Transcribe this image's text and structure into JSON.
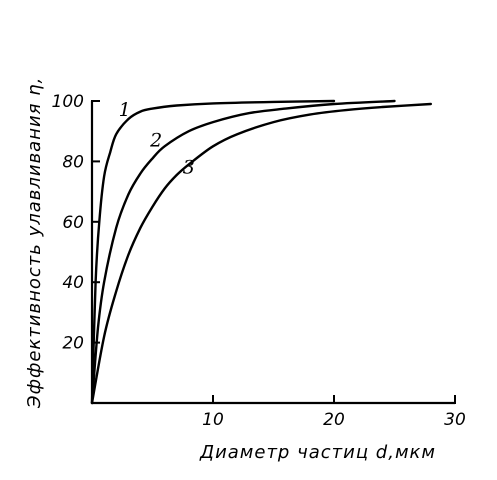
{
  "chart_data": {
    "type": "line",
    "title": "",
    "xlabel": "Диаметр частиц d,мкм",
    "ylabel": "Эффективность улавливания η,",
    "xlim": [
      0,
      30
    ],
    "ylim": [
      0,
      100
    ],
    "x_ticks": [
      10,
      20,
      30
    ],
    "y_ticks": [
      20,
      40,
      60,
      80,
      100
    ],
    "grid": false,
    "legend": "none",
    "series": [
      {
        "label": "1",
        "x": [
          0,
          0.3,
          0.6,
          1.0,
          1.5,
          2.0,
          3.0,
          4.0,
          5.0,
          7.0,
          10.0,
          15.0,
          20.0
        ],
        "y": [
          0,
          40,
          60,
          75,
          83,
          89,
          94,
          96.5,
          97.5,
          98.5,
          99.2,
          99.7,
          100
        ],
        "label_at": [
          2.2,
          95
        ]
      },
      {
        "label": "2",
        "x": [
          0,
          0.5,
          1.0,
          2.0,
          3.0,
          4.0,
          5.0,
          6.0,
          8.0,
          10.0,
          13.0,
          16.0,
          20.0,
          25.0
        ],
        "y": [
          0,
          25,
          40,
          58,
          69,
          76,
          81,
          85,
          90,
          93,
          96,
          97.5,
          99,
          100
        ],
        "label_at": [
          4.8,
          85
        ]
      },
      {
        "label": "3",
        "x": [
          0,
          1.0,
          2.0,
          3.0,
          4.0,
          5.0,
          6.0,
          7.0,
          8.0,
          10.0,
          12.0,
          15.0,
          18.0,
          21.0,
          24.0,
          28.0
        ],
        "y": [
          0,
          22,
          37,
          49,
          58,
          65,
          71,
          75.5,
          79,
          85,
          89,
          93,
          95.5,
          97,
          98,
          99
        ],
        "label_at": [
          7.5,
          76
        ]
      }
    ]
  }
}
